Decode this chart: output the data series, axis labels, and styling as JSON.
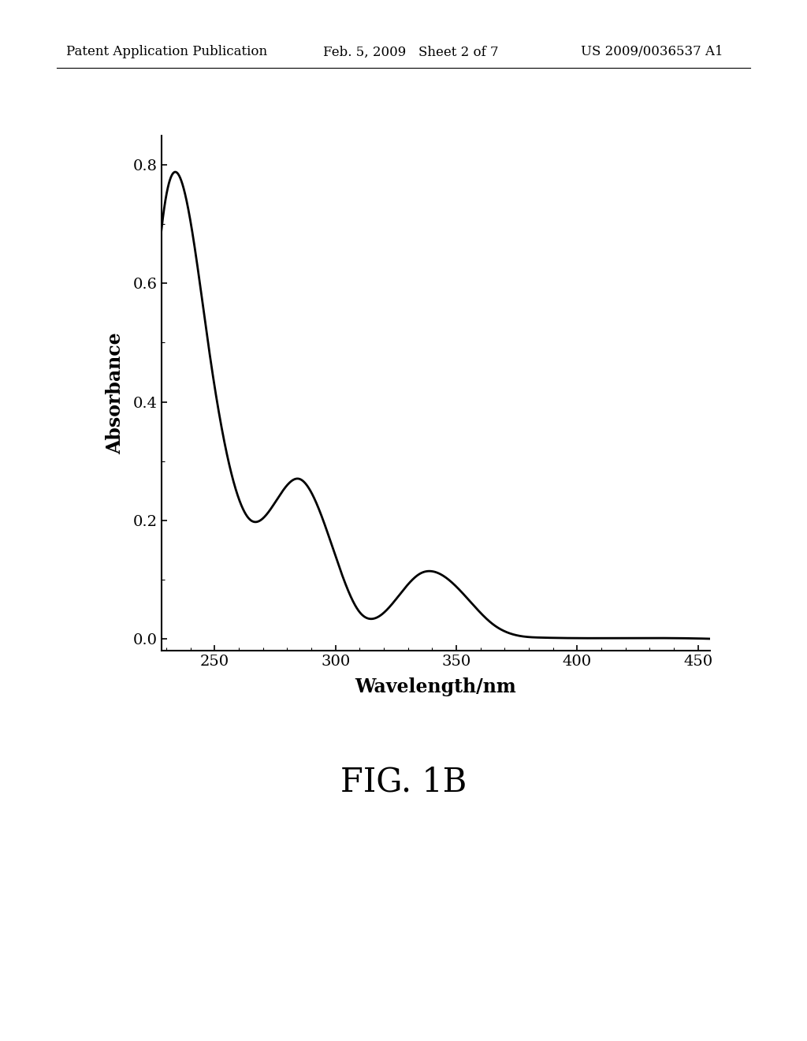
{
  "header_left": "Patent Application Publication",
  "header_mid": "Feb. 5, 2009   Sheet 2 of 7",
  "header_right": "US 2009/0036537 A1",
  "xlabel": "Wavelength/nm",
  "ylabel": "Absorbance",
  "fig_label": "FIG. 1B",
  "xlim": [
    228,
    455
  ],
  "ylim": [
    -0.02,
    0.85
  ],
  "xticks": [
    250,
    300,
    350,
    400,
    450
  ],
  "yticks": [
    0.0,
    0.2,
    0.4,
    0.6,
    0.8
  ],
  "ytick_labels": [
    "0.0",
    "0.2",
    "0.4",
    "0.6",
    "0.8"
  ],
  "line_color": "#000000",
  "background_color": "#ffffff",
  "header_fontsize": 12,
  "axis_label_fontsize": 17,
  "tick_fontsize": 14,
  "fig_label_fontsize": 30
}
